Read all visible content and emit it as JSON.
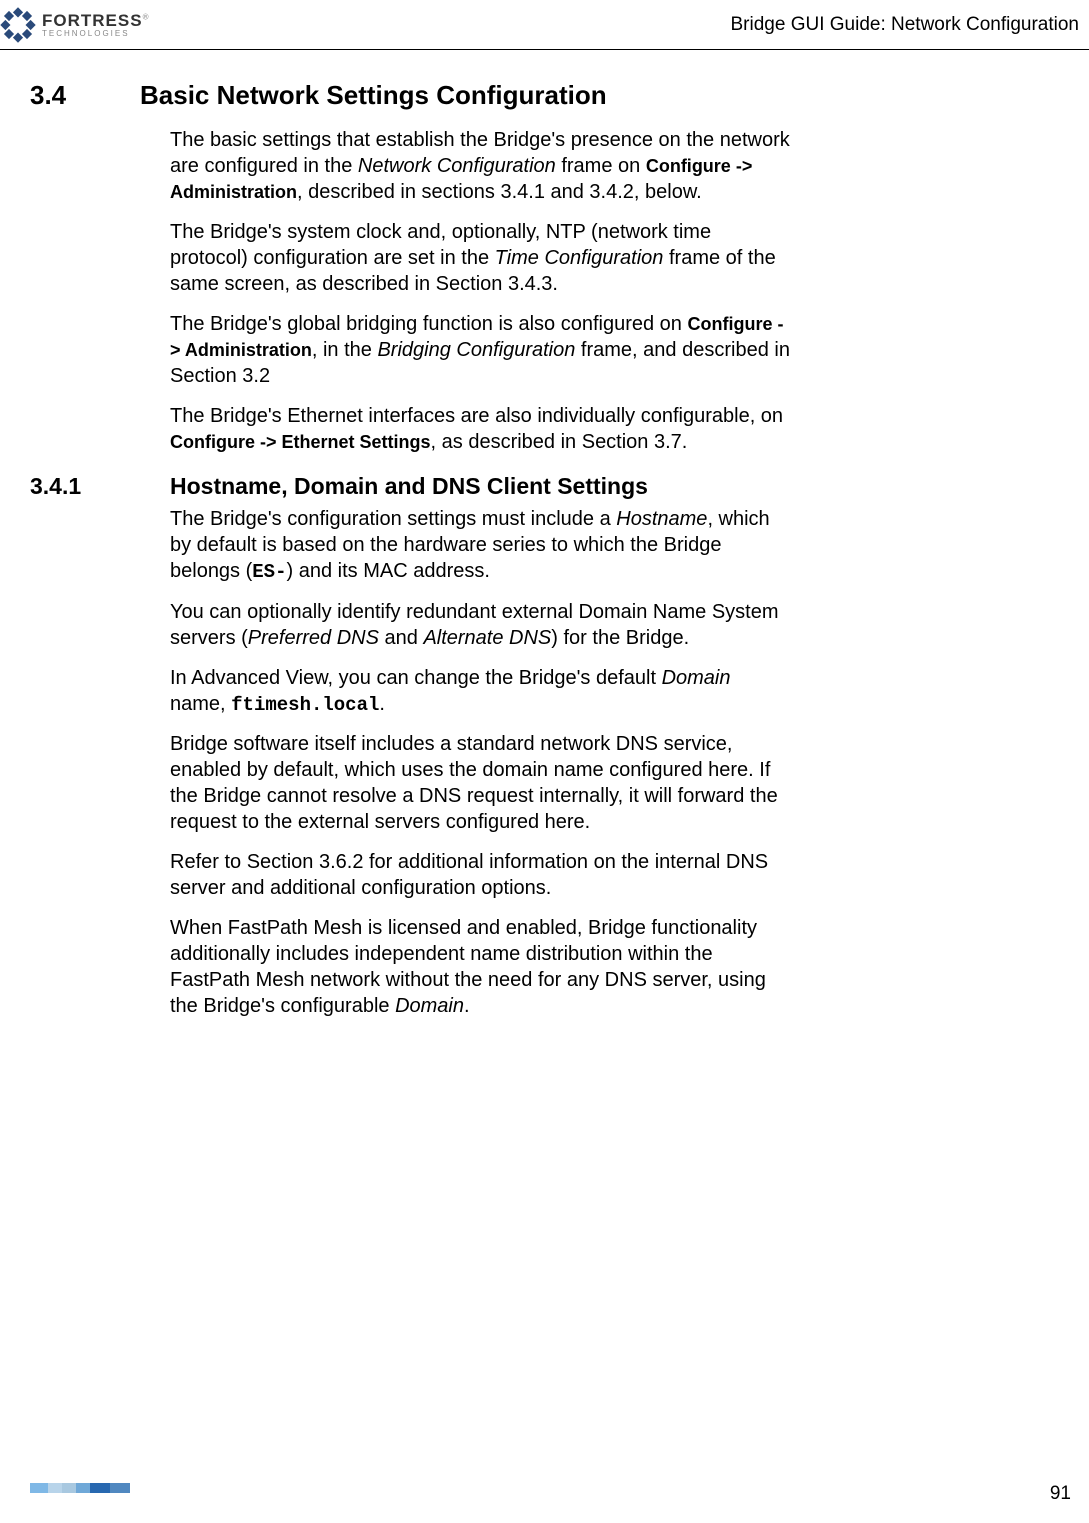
{
  "header": {
    "logo_main": "FORTRESS",
    "logo_sub": "TECHNOLOGIES",
    "logo_reg": "®",
    "title": "Bridge GUI Guide: Network Configuration"
  },
  "section": {
    "num": "3.4",
    "title": "Basic Network Settings Configuration",
    "paras": {
      "p1a": "The basic settings that establish the Bridge's presence on the network are configured in the ",
      "p1b": "Network Configuration",
      "p1c": " frame on ",
      "p1d": "Configure -> Administration",
      "p1e": ", described in sections 3.4.1 and 3.4.2, below.",
      "p2a": "The Bridge's system clock and, optionally, NTP (network time protocol) configuration are set in the ",
      "p2b": "Time Configuration",
      "p2c": " frame of the same screen, as described in Section 3.4.3.",
      "p3a": "The Bridge's global bridging function is also configured on ",
      "p3b": "Configure -> Administration",
      "p3c": ", in the ",
      "p3d": "Bridging Configuration",
      "p3e": " frame, and described in Section 3.2",
      "p4a": "The Bridge's Ethernet interfaces are also individually configurable, on ",
      "p4b": "Configure -> Ethernet Settings",
      "p4c": ", as described in Section 3.7."
    }
  },
  "subsection": {
    "num": "3.4.1",
    "title": "Hostname, Domain and DNS Client Settings",
    "paras": {
      "p1a": "The Bridge's configuration settings must include a ",
      "p1b": "Hostname",
      "p1c": ", which by default is based on the hardware series to which the Bridge belongs (",
      "p1d": "ES-",
      "p1e": ") and its MAC address.",
      "p2a": "You can optionally identify redundant external Domain Name System servers (",
      "p2b": "Preferred DNS",
      "p2c": " and ",
      "p2d": "Alternate DNS",
      "p2e": ") for the Bridge.",
      "p3a": "In Advanced View, you can change the Bridge's default ",
      "p3b": "Domain",
      "p3c": " name, ",
      "p3d": "ftimesh.local",
      "p3e": ".",
      "p4": "Bridge software itself includes a standard network DNS service, enabled by default, which uses the domain name configured here. If the Bridge cannot resolve a DNS request internally, it will forward the request to the external servers configured here.",
      "p5": "Refer to Section 3.6.2 for additional information on the internal DNS server and additional configuration options.",
      "p6a": "When FastPath Mesh is licensed and enabled, Bridge functionality additionally includes independent name distribution within the FastPath Mesh network without the need for any DNS server, using the Bridge's configurable ",
      "p6b": "Domain",
      "p6c": "."
    }
  },
  "footer": {
    "page_number": "91",
    "bar_segments": [
      {
        "color": "#7fb8e6",
        "width": 0.18
      },
      {
        "color": "#b8d4ea",
        "width": 0.14
      },
      {
        "color": "#a8c8e0",
        "width": 0.14
      },
      {
        "color": "#6fa8d8",
        "width": 0.14
      },
      {
        "color": "#2868b0",
        "width": 0.2
      },
      {
        "color": "#5088c0",
        "width": 0.2
      }
    ]
  },
  "logo_svg": {
    "fill": "#2a4a7a"
  }
}
